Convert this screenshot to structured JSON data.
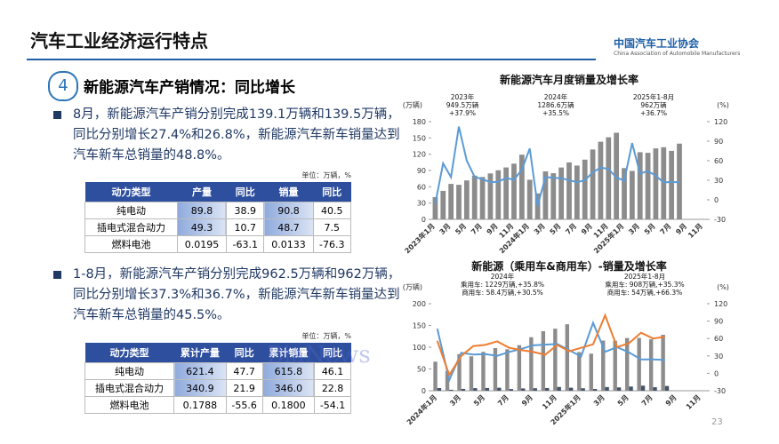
{
  "header": {
    "title": "汽车工业经济运行特点",
    "logo_cn": "中国汽车工业协会",
    "logo_en": "China Association of Automobile Manufacturers"
  },
  "section": {
    "number": "4",
    "title": "新能源汽车产销情况：同比增长"
  },
  "bullets": [
    "8月，新能源汽车产销分别完成139.1万辆和139.5万辆，同比分别增长27.4%和26.8%，新能源汽车新车销量达到汽车新车总销量的48.8%。",
    "1-8月，新能源汽车产销分别完成962.5万辆和962万辆，同比分别增长37.3%和36.7%，新能源汽车新车销量达到汽车新车总销量的45.5%。"
  ],
  "table1": {
    "unit": "单位：万辆，%",
    "header": [
      "动力类型",
      "产量",
      "同比",
      "销量",
      "同比"
    ],
    "rows": [
      [
        "纯电动",
        "89.8",
        "38.9",
        "90.8",
        "40.5"
      ],
      [
        "插电式混合动力",
        "49.3",
        "10.7",
        "48.7",
        "7.5"
      ],
      [
        "燃料电池",
        "0.0195",
        "-63.1",
        "0.0133",
        "-76.3"
      ]
    ]
  },
  "table2": {
    "unit": "单位：万辆，%",
    "header": [
      "动力类型",
      "累计产量",
      "同比",
      "累计销量",
      "同比"
    ],
    "rows": [
      [
        "纯电动",
        "621.4",
        "47.7",
        "615.8",
        "46.1"
      ],
      [
        "插电式混合动力",
        "340.9",
        "21.9",
        "346.0",
        "22.8"
      ],
      [
        "燃料电池",
        "0.1788",
        "-55.6",
        "0.1800",
        "-54.1"
      ]
    ]
  },
  "watermark": "BiaNews",
  "page_number": "23",
  "chart_data": [
    {
      "type": "bar_line",
      "title": "新能源汽车月度销量及增长率",
      "y_label": "(万辆)",
      "y2_label": "(%)",
      "categories": [
        "2023年1月",
        null,
        "3月",
        null,
        "5月",
        null,
        "7月",
        null,
        "9月",
        null,
        "11月",
        null,
        "2024年1月",
        null,
        "3月",
        null,
        "5月",
        null,
        "7月",
        null,
        "9月",
        null,
        "11月",
        null,
        "2025年1月",
        null,
        "3月",
        null,
        "5月",
        null,
        "7月",
        null,
        "9月",
        null,
        "11月"
      ],
      "ylim": [
        0,
        180
      ],
      "yticks": [
        0,
        30,
        60,
        90,
        120,
        150,
        180
      ],
      "y2lim": [
        -30,
        120
      ],
      "y2ticks": [
        -30,
        0,
        30,
        60,
        90,
        120
      ],
      "series": [
        {
          "type": "bar",
          "color": "#8c8c8c",
          "values": [
            41,
            52.5,
            65.3,
            63.6,
            71.7,
            80.6,
            78,
            84.6,
            90.4,
            95.6,
            102.6,
            119.1,
            72.9,
            47.7,
            88.3,
            85,
            95.5,
            104.9,
            99.1,
            110,
            128.7,
            143,
            151.2,
            159.6,
            94.4,
            89.2,
            123.7,
            122.6,
            130.7,
            132.9,
            126.2,
            139.5,
            null,
            null,
            null
          ]
        },
        {
          "type": "line",
          "axis": "y2",
          "color": "#5b9bd5",
          "values": [
            -6.3,
            55.9,
            34.8,
            112.4,
            60.2,
            35.2,
            31.6,
            27,
            27.7,
            33.5,
            30.7,
            46.4,
            78.8,
            -9.2,
            35.3,
            33.5,
            33.3,
            30.1,
            27,
            30,
            42.3,
            49.6,
            47.4,
            34.1,
            29.4,
            87.1,
            40.1,
            44.2,
            36.9,
            26.7,
            27.4,
            26.8,
            null,
            null,
            null
          ]
        }
      ],
      "annotations": [
        [
          "2023年",
          "949.5万辆",
          "+37.9%"
        ],
        [
          "2024年",
          "1286.6万辆",
          "+35.5%"
        ],
        [
          "2025年1-8月",
          "962万辆",
          "+36.7%"
        ]
      ]
    },
    {
      "type": "bar_line",
      "title": "新能源（乘用车&商用车）-销量及增长率",
      "y_label": "(万辆)",
      "y2_label": "(%)",
      "categories": [
        "2024年1月",
        null,
        "3月",
        null,
        "5月",
        null,
        "7月",
        null,
        "9月",
        null,
        "11月",
        null,
        "2025年1月",
        null,
        "3月",
        null,
        "5月",
        null,
        "7月",
        null,
        "9月",
        null,
        "11月"
      ],
      "ylim": [
        0,
        200
      ],
      "yticks": [
        0,
        50,
        100,
        150,
        200
      ],
      "y2lim": [
        -30,
        120
      ],
      "y2ticks": [
        -30,
        0,
        30,
        60,
        90,
        120
      ],
      "series": [
        {
          "type": "bar",
          "color": "#8c8c8c",
          "values": [
            66.8,
            45.5,
            84.1,
            79.1,
            89.3,
            98,
            95.2,
            104.7,
            123,
            136.8,
            142.6,
            152.7,
            88.8,
            85.2,
            115.3,
            114.9,
            121.1,
            121.3,
            118.2,
            128.6,
            null,
            null,
            null
          ]
        },
        {
          "type": "bar",
          "color": "#44546a",
          "values": [
            6.1,
            2.2,
            4.2,
            5.9,
            6.2,
            6.9,
            3.9,
            5.3,
            5.7,
            6.2,
            8.6,
            6.9,
            5.6,
            4,
            8.4,
            7.7,
            9.6,
            11.6,
            8,
            10.9,
            null,
            null,
            null
          ]
        },
        {
          "type": "line",
          "axis": "y2",
          "color": "#5b9bd5",
          "values": [
            77,
            -11.6,
            35.3,
            32.3,
            33.2,
            30.1,
            36.9,
            42,
            48.3,
            49.4,
            50.5,
            40,
            29,
            87,
            37,
            45,
            36,
            24,
            24,
            23,
            null,
            null,
            null
          ]
        },
        {
          "type": "line",
          "axis": "y2",
          "color": "#ed7d31",
          "values": [
            56,
            -3,
            30,
            47,
            49,
            55,
            44,
            40,
            37,
            32,
            49,
            38,
            44,
            50,
            100,
            45,
            52,
            70,
            60,
            63,
            null,
            null,
            null
          ]
        }
      ],
      "annotations": [
        [
          "2024年",
          "乘用车: 1229万辆,+35.8%",
          "商用车: 58.4万辆,+30.5%"
        ],
        [
          "2025年1-8月",
          "乘用车: 908万辆,+35.3%",
          "商用车: 54万辆,+66.3%"
        ]
      ]
    }
  ]
}
